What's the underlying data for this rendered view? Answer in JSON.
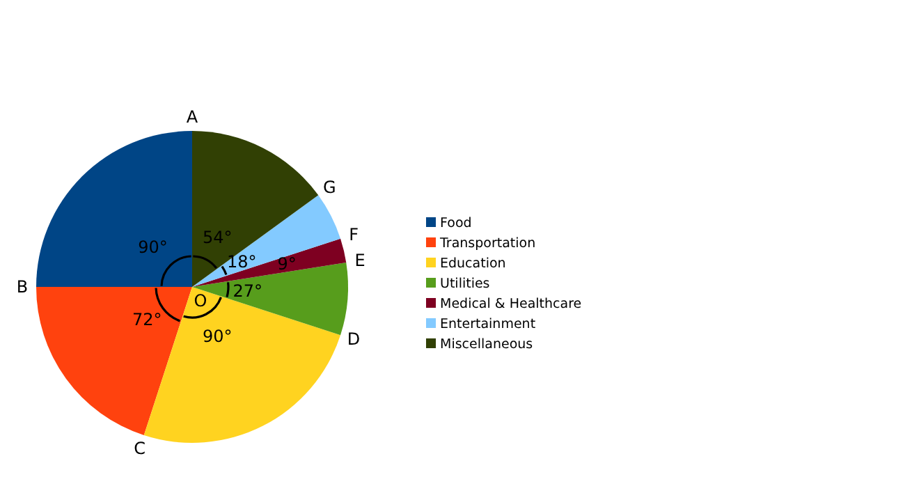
{
  "chart_data": {
    "type": "pie",
    "categories": [
      "Food",
      "Transportation",
      "Education",
      "Utilities",
      "Medical & Healthcare",
      "Entertainment",
      "Miscellaneous"
    ],
    "values": [
      90,
      72,
      90,
      27,
      9,
      18,
      54
    ],
    "value_labels": [
      "90°",
      "72°",
      "90°",
      "27°",
      "9°",
      "18°",
      "54°"
    ],
    "colors": [
      "#004586",
      "#ff420e",
      "#ffd320",
      "#579d1c",
      "#7e0021",
      "#83caff",
      "#314004"
    ],
    "annotations": [
      "A",
      "B",
      "C",
      "D",
      "E",
      "F",
      "G",
      "O"
    ],
    "legend": "right"
  }
}
